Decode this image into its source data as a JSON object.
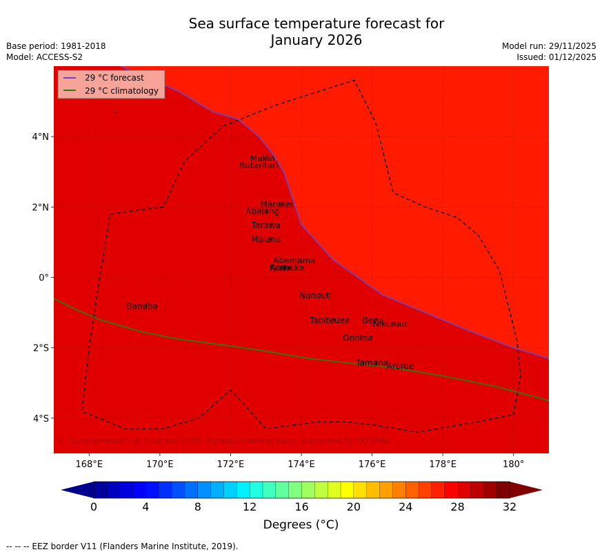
{
  "title": {
    "line1": "Sea surface temperature forecast for",
    "line2": "January 2026"
  },
  "meta_left": {
    "base_period": "Base period: 1981-2018",
    "model": "Model: ACCESS-S2"
  },
  "meta_right": {
    "model_run": "Model run: 29/11/2025",
    "issued": "Issued: 01/12/2025"
  },
  "map": {
    "lon_range": [
      167,
      181
    ],
    "lat_range": [
      -5,
      6
    ],
    "lon_ticks": [
      "168°E",
      "170°E",
      "172°E",
      "174°E",
      "176°E",
      "178°E",
      "180°"
    ],
    "lat_ticks": [
      "4°N",
      "2°N",
      "0°",
      "2°S",
      "4°S"
    ],
    "colors": {
      "warm_zone": "#ff1a00",
      "main_zone": "#e10000",
      "forecast_line": "#7a3fb4",
      "climatology_line": "#2c7a12",
      "eez_border": "#000000"
    },
    "legend": {
      "forecast": "29 °C  forecast",
      "climatology": "29 °C  climatology"
    },
    "islands": [
      {
        "name": "Makin",
        "lon": 172.9,
        "lat": 3.3
      },
      {
        "name": "Butaritari",
        "lon": 172.8,
        "lat": 3.1
      },
      {
        "name": "Marakei",
        "lon": 173.3,
        "lat": 2.0
      },
      {
        "name": "Abaiang",
        "lon": 172.9,
        "lat": 1.8
      },
      {
        "name": "Tarawa",
        "lon": 173.0,
        "lat": 1.4
      },
      {
        "name": "Maiana",
        "lon": 173.0,
        "lat": 1.0
      },
      {
        "name": "Abemama",
        "lon": 173.8,
        "lat": 0.4
      },
      {
        "name": "Kuria",
        "lon": 173.4,
        "lat": 0.2
      },
      {
        "name": "Aranuka",
        "lon": 173.6,
        "lat": 0.2
      },
      {
        "name": "Nonouti",
        "lon": 174.4,
        "lat": -0.6
      },
      {
        "name": "Banaba",
        "lon": 169.5,
        "lat": -0.9
      },
      {
        "name": "Beru",
        "lon": 176.0,
        "lat": -1.3
      },
      {
        "name": "Tabiteuea",
        "lon": 174.8,
        "lat": -1.3
      },
      {
        "name": "Nikunau",
        "lon": 176.5,
        "lat": -1.4
      },
      {
        "name": "Onotoa",
        "lon": 175.6,
        "lat": -1.8
      },
      {
        "name": "Tamana",
        "lon": 176.0,
        "lat": -2.5
      },
      {
        "name": "Arorae",
        "lon": 176.8,
        "lat": -2.6
      }
    ],
    "forecast_line": [
      [
        168.9,
        6.0
      ],
      [
        169.8,
        5.6
      ],
      [
        170.5,
        5.3
      ],
      [
        171.5,
        4.7
      ],
      [
        172.2,
        4.5
      ],
      [
        172.8,
        4.0
      ],
      [
        173.2,
        3.5
      ],
      [
        173.5,
        3.0
      ],
      [
        174.0,
        1.5
      ],
      [
        174.9,
        0.5
      ],
      [
        176.3,
        -0.5
      ],
      [
        177.5,
        -1.0
      ],
      [
        178.7,
        -1.5
      ],
      [
        180.0,
        -2.0
      ],
      [
        181.0,
        -2.3
      ]
    ],
    "climatology_line": [
      [
        167.0,
        -0.6
      ],
      [
        167.6,
        -0.9
      ],
      [
        168.3,
        -1.2
      ],
      [
        169.5,
        -1.55
      ],
      [
        170.5,
        -1.75
      ],
      [
        172.0,
        -1.95
      ],
      [
        173.0,
        -2.1
      ],
      [
        174.2,
        -2.3
      ],
      [
        175.5,
        -2.45
      ],
      [
        176.5,
        -2.55
      ],
      [
        178.0,
        -2.8
      ],
      [
        179.5,
        -3.1
      ],
      [
        181.0,
        -3.5
      ]
    ],
    "eez_border": [
      [
        171.8,
        4.3
      ],
      [
        173.3,
        4.9
      ],
      [
        175.5,
        5.6
      ],
      [
        176.1,
        4.4
      ],
      [
        176.6,
        2.4
      ],
      [
        177.5,
        2.0
      ],
      [
        178.4,
        1.7
      ],
      [
        179.0,
        1.2
      ],
      [
        179.6,
        0.2
      ],
      [
        179.8,
        -0.6
      ],
      [
        180.1,
        -1.8
      ],
      [
        180.2,
        -2.8
      ],
      [
        180.0,
        -3.9
      ],
      [
        179.0,
        -4.1
      ],
      [
        177.3,
        -4.4
      ],
      [
        176.1,
        -4.2
      ],
      [
        175.2,
        -4.1
      ],
      [
        174.5,
        -4.1
      ],
      [
        173.0,
        -4.3
      ],
      [
        172.0,
        -3.2
      ],
      [
        171.1,
        -4.0
      ],
      [
        170.1,
        -4.3
      ],
      [
        169.0,
        -4.3
      ],
      [
        167.8,
        -3.8
      ],
      [
        168.0,
        -2.0
      ],
      [
        168.3,
        0.0
      ],
      [
        168.6,
        1.8
      ],
      [
        170.1,
        2.0
      ],
      [
        170.7,
        3.3
      ],
      [
        171.8,
        4.3
      ]
    ],
    "copyright": "© Commonwealth of Australia 2025, Bureau of Meteorology, supported by COSPPac"
  },
  "colorbar": {
    "min": 0,
    "max": 32,
    "step": 1,
    "tick_labels": [
      "0",
      "4",
      "8",
      "12",
      "16",
      "20",
      "24",
      "28",
      "32"
    ],
    "low_color": "#00008f",
    "high_color": "#800000",
    "colors": [
      "#00009f",
      "#0000bf",
      "#0000df",
      "#0000ff",
      "#0010ff",
      "#0030ff",
      "#0050ff",
      "#0070ff",
      "#0090ff",
      "#00b0ff",
      "#00d0ff",
      "#00f0ff",
      "#20ffdf",
      "#40ffbf",
      "#60ff9f",
      "#80ff80",
      "#9fff60",
      "#bfff40",
      "#dfff20",
      "#ffff00",
      "#ffdf00",
      "#ffbf00",
      "#ff9f00",
      "#ff8000",
      "#ff6000",
      "#ff4000",
      "#ff2000",
      "#ff0000",
      "#df0000",
      "#bf0000",
      "#9f0000",
      "#800000"
    ],
    "label": "Degrees (°C)"
  },
  "footer": "--  --  -- EEZ border V11 (Flanders Marine Institute, 2019)."
}
